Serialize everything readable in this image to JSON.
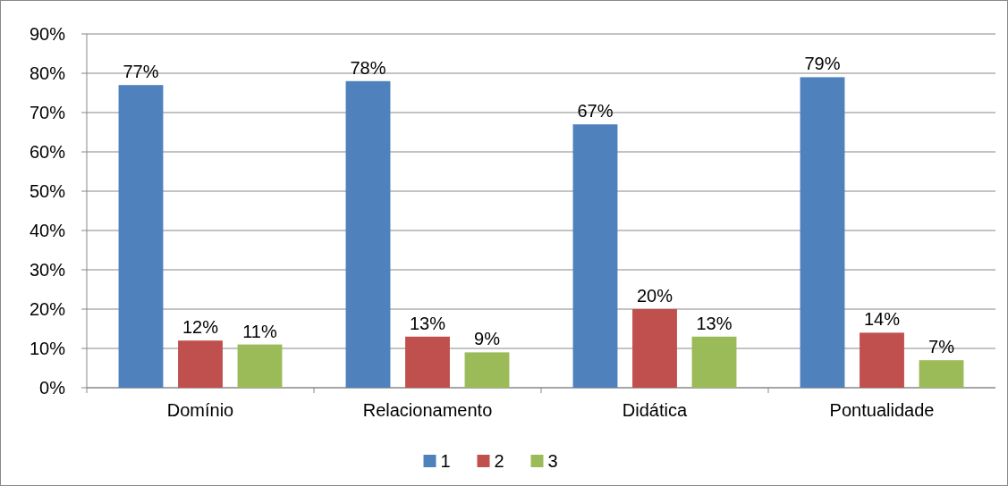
{
  "chart_data": {
    "type": "bar",
    "categories": [
      "Domínio",
      "Relacionamento",
      "Didática",
      "Pontualidade"
    ],
    "series": [
      {
        "name": "1",
        "color": "#4f81bd",
        "values": [
          77,
          78,
          67,
          79
        ],
        "value_labels": [
          "77%",
          "78%",
          "67%",
          "79%"
        ]
      },
      {
        "name": "2",
        "color": "#c0504d",
        "values": [
          12,
          13,
          20,
          14
        ],
        "value_labels": [
          "12%",
          "13%",
          "20%",
          "14%"
        ]
      },
      {
        "name": "3",
        "color": "#9bbb59",
        "values": [
          11,
          9,
          13,
          7
        ],
        "value_labels": [
          "11%",
          "9%",
          "13%",
          "7%"
        ]
      }
    ],
    "ylim": [
      0,
      90
    ],
    "yticks": [
      {
        "value": 0,
        "label": "0%"
      },
      {
        "value": 10,
        "label": "10%"
      },
      {
        "value": 20,
        "label": "20%"
      },
      {
        "value": 30,
        "label": "30%"
      },
      {
        "value": 40,
        "label": "40%"
      },
      {
        "value": 50,
        "label": "50%"
      },
      {
        "value": 60,
        "label": "60%"
      },
      {
        "value": 70,
        "label": "70%"
      },
      {
        "value": 80,
        "label": "80%"
      },
      {
        "value": 90,
        "label": "90%"
      }
    ],
    "grid": "y",
    "legend": "bottom"
  }
}
